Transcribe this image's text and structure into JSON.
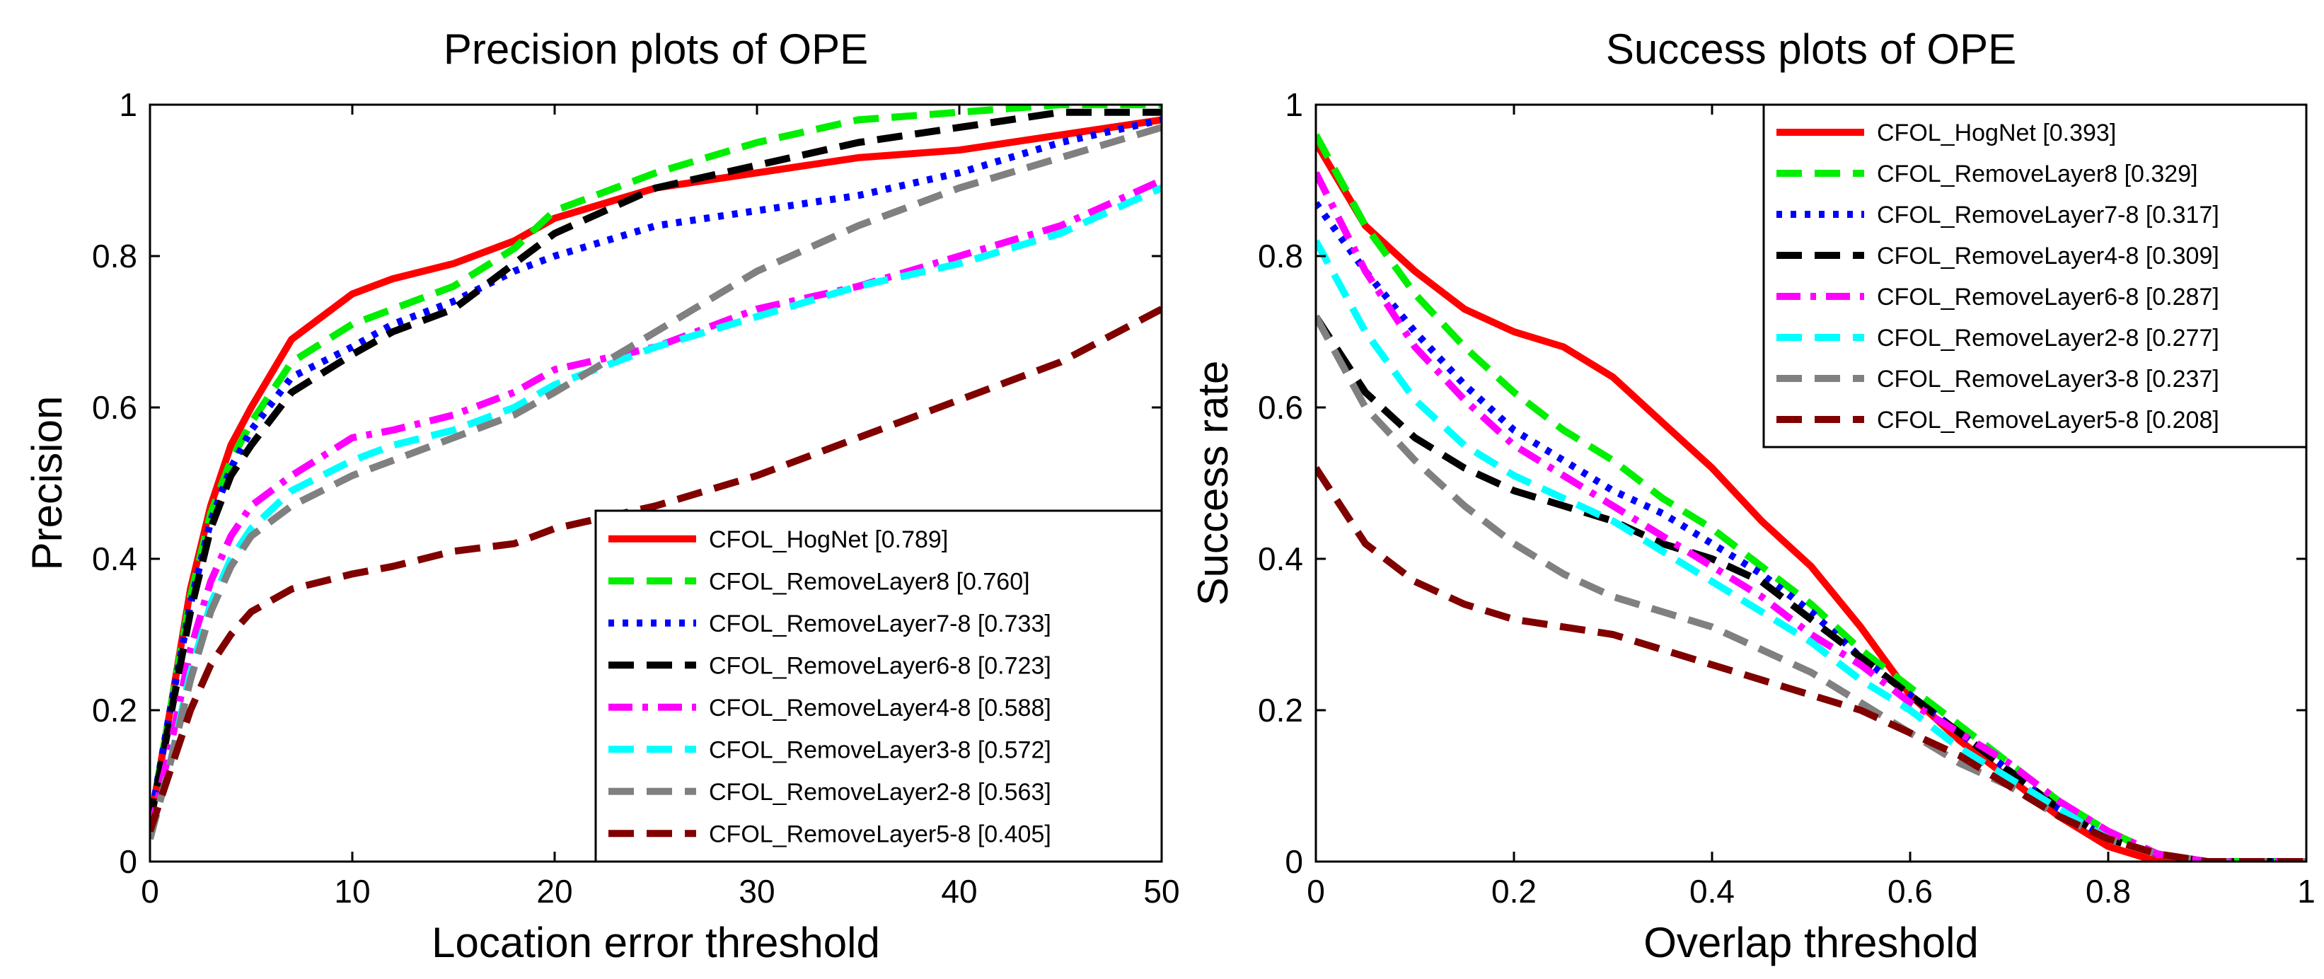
{
  "chart_data": [
    {
      "type": "line",
      "title": "Precision plots of OPE",
      "xlabel": "Location error threshold",
      "ylabel": "Precision",
      "xlim": [
        0,
        50
      ],
      "ylim": [
        0,
        1
      ],
      "xticks": [
        0,
        10,
        20,
        30,
        40,
        50
      ],
      "yticks": [
        0,
        0.2,
        0.4,
        0.6,
        0.8,
        1
      ],
      "xtick_labels": [
        "0",
        "10",
        "20",
        "30",
        "40",
        "50"
      ],
      "ytick_labels": [
        "0",
        "0.2",
        "0.4",
        "0.6",
        "0.8",
        "1"
      ],
      "legend_position": "bottom-right",
      "x": [
        0,
        1,
        2,
        3,
        4,
        5,
        7,
        10,
        12,
        15,
        18,
        20,
        25,
        30,
        35,
        40,
        45,
        50
      ],
      "series": [
        {
          "name": "CFOL_HogNet [0.789]",
          "color": "#ff0000",
          "style": "solid",
          "values": [
            0.05,
            0.2,
            0.36,
            0.47,
            0.55,
            0.6,
            0.69,
            0.75,
            0.77,
            0.79,
            0.82,
            0.85,
            0.89,
            0.91,
            0.93,
            0.94,
            0.96,
            0.98
          ]
        },
        {
          "name": "CFOL_RemoveLayer8 [0.760]",
          "color": "#00ee00",
          "style": "dashed",
          "values": [
            0.05,
            0.2,
            0.35,
            0.46,
            0.53,
            0.58,
            0.66,
            0.71,
            0.73,
            0.76,
            0.81,
            0.86,
            0.91,
            0.95,
            0.98,
            0.99,
            1.0,
            1.0
          ]
        },
        {
          "name": "CFOL_RemoveLayer7-8 [0.733]",
          "color": "#0000ff",
          "style": "dotted",
          "values": [
            0.05,
            0.2,
            0.34,
            0.45,
            0.52,
            0.57,
            0.64,
            0.68,
            0.71,
            0.74,
            0.78,
            0.8,
            0.84,
            0.86,
            0.88,
            0.91,
            0.95,
            0.98
          ]
        },
        {
          "name": "CFOL_RemoveLayer6-8 [0.723]",
          "color": "#000000",
          "style": "dashed",
          "values": [
            0.05,
            0.19,
            0.33,
            0.44,
            0.51,
            0.55,
            0.62,
            0.67,
            0.7,
            0.73,
            0.79,
            0.83,
            0.89,
            0.92,
            0.95,
            0.97,
            0.99,
            0.99
          ]
        },
        {
          "name": "CFOL_RemoveLayer4-8 [0.588]",
          "color": "#ff00ff",
          "style": "dashdot",
          "values": [
            0.04,
            0.15,
            0.28,
            0.37,
            0.43,
            0.47,
            0.51,
            0.56,
            0.57,
            0.59,
            0.62,
            0.65,
            0.68,
            0.73,
            0.76,
            0.8,
            0.84,
            0.9
          ]
        },
        {
          "name": "CFOL_RemoveLayer3-8 [0.572]",
          "color": "#00ffff",
          "style": "dashed",
          "values": [
            0.03,
            0.13,
            0.25,
            0.34,
            0.4,
            0.44,
            0.49,
            0.53,
            0.55,
            0.57,
            0.6,
            0.63,
            0.68,
            0.72,
            0.76,
            0.79,
            0.83,
            0.89
          ]
        },
        {
          "name": "CFOL_RemoveLayer2-8 [0.563]",
          "color": "#808080",
          "style": "dashed",
          "values": [
            0.03,
            0.13,
            0.24,
            0.33,
            0.39,
            0.43,
            0.47,
            0.51,
            0.53,
            0.56,
            0.59,
            0.62,
            0.7,
            0.78,
            0.84,
            0.89,
            0.93,
            0.97
          ]
        },
        {
          "name": "CFOL_RemoveLayer5-8 [0.405]",
          "color": "#800000",
          "style": "dashed",
          "values": [
            0.04,
            0.12,
            0.2,
            0.26,
            0.3,
            0.33,
            0.36,
            0.38,
            0.39,
            0.41,
            0.42,
            0.44,
            0.47,
            0.51,
            0.56,
            0.61,
            0.66,
            0.73
          ]
        }
      ]
    },
    {
      "type": "line",
      "title": "Success plots of OPE",
      "xlabel": "Overlap threshold",
      "ylabel": "Success rate",
      "xlim": [
        0,
        1
      ],
      "ylim": [
        0,
        1
      ],
      "xticks": [
        0,
        0.2,
        0.4,
        0.6,
        0.8,
        1
      ],
      "yticks": [
        0,
        0.2,
        0.4,
        0.6,
        0.8,
        1
      ],
      "xtick_labels": [
        "0",
        "0.2",
        "0.4",
        "0.6",
        "0.8",
        "1"
      ],
      "ytick_labels": [
        "0",
        "0.2",
        "0.4",
        "0.6",
        "0.8",
        "1"
      ],
      "legend_position": "top-right",
      "x": [
        0,
        0.05,
        0.1,
        0.15,
        0.2,
        0.25,
        0.3,
        0.35,
        0.4,
        0.45,
        0.5,
        0.55,
        0.6,
        0.65,
        0.7,
        0.75,
        0.8,
        0.85,
        0.9,
        0.95,
        1.0
      ],
      "series": [
        {
          "name": "CFOL_HogNet [0.393]",
          "color": "#ff0000",
          "style": "solid",
          "values": [
            0.95,
            0.84,
            0.78,
            0.73,
            0.7,
            0.68,
            0.64,
            0.58,
            0.52,
            0.45,
            0.39,
            0.31,
            0.22,
            0.16,
            0.11,
            0.06,
            0.02,
            0.0,
            0.0,
            0.0,
            0.0
          ]
        },
        {
          "name": "CFOL_RemoveLayer8 [0.329]",
          "color": "#00ee00",
          "style": "dashed",
          "values": [
            0.96,
            0.84,
            0.75,
            0.68,
            0.62,
            0.57,
            0.53,
            0.48,
            0.44,
            0.39,
            0.34,
            0.28,
            0.23,
            0.18,
            0.13,
            0.08,
            0.04,
            0.01,
            0.0,
            0.0,
            0.0
          ]
        },
        {
          "name": "CFOL_RemoveLayer7-8 [0.317]",
          "color": "#0000ff",
          "style": "dotted",
          "values": [
            0.87,
            0.78,
            0.7,
            0.63,
            0.57,
            0.53,
            0.49,
            0.46,
            0.42,
            0.38,
            0.33,
            0.27,
            0.22,
            0.17,
            0.12,
            0.07,
            0.03,
            0.01,
            0.0,
            0.0,
            0.0
          ]
        },
        {
          "name": "CFOL_RemoveLayer4-8 [0.309]",
          "color": "#000000",
          "style": "dashed",
          "values": [
            0.72,
            0.62,
            0.56,
            0.52,
            0.49,
            0.47,
            0.45,
            0.42,
            0.4,
            0.37,
            0.32,
            0.27,
            0.22,
            0.17,
            0.12,
            0.07,
            0.03,
            0.01,
            0.0,
            0.0,
            0.0
          ]
        },
        {
          "name": "CFOL_RemoveLayer6-8 [0.287]",
          "color": "#ff00ff",
          "style": "dashdot",
          "values": [
            0.91,
            0.78,
            0.68,
            0.61,
            0.55,
            0.51,
            0.47,
            0.43,
            0.39,
            0.35,
            0.3,
            0.26,
            0.21,
            0.17,
            0.13,
            0.08,
            0.04,
            0.01,
            0.0,
            0.0,
            0.0
          ]
        },
        {
          "name": "CFOL_RemoveLayer2-8 [0.277]",
          "color": "#00ffff",
          "style": "dashed",
          "values": [
            0.82,
            0.7,
            0.61,
            0.55,
            0.51,
            0.48,
            0.45,
            0.41,
            0.37,
            0.33,
            0.29,
            0.24,
            0.2,
            0.15,
            0.11,
            0.07,
            0.03,
            0.01,
            0.0,
            0.0,
            0.0
          ]
        },
        {
          "name": "CFOL_RemoveLayer3-8 [0.237]",
          "color": "#808080",
          "style": "dashed",
          "values": [
            0.72,
            0.6,
            0.53,
            0.47,
            0.42,
            0.38,
            0.35,
            0.33,
            0.31,
            0.28,
            0.25,
            0.21,
            0.17,
            0.13,
            0.1,
            0.06,
            0.03,
            0.01,
            0.0,
            0.0,
            0.0
          ]
        },
        {
          "name": "CFOL_RemoveLayer5-8 [0.208]",
          "color": "#800000",
          "style": "dashed",
          "values": [
            0.52,
            0.42,
            0.37,
            0.34,
            0.32,
            0.31,
            0.3,
            0.28,
            0.26,
            0.24,
            0.22,
            0.2,
            0.17,
            0.14,
            0.1,
            0.06,
            0.03,
            0.01,
            0.0,
            0.0,
            0.0
          ]
        }
      ]
    }
  ]
}
